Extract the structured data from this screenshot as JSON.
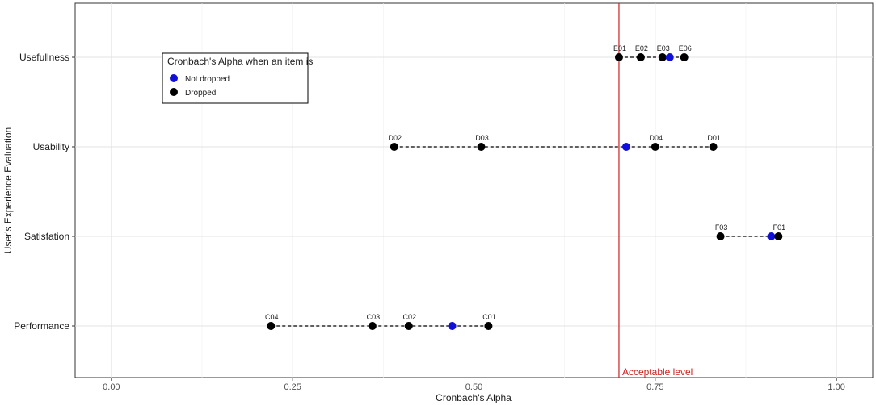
{
  "chart_data": {
    "type": "scatter",
    "xlabel": "Cronbach's Alpha",
    "ylabel": "User's Experience Evaluation",
    "xlim": [
      -0.05,
      1.05
    ],
    "x_ticks": [
      "0.00",
      "0.25",
      "0.50",
      "0.75",
      "1.00"
    ],
    "x_tick_values": [
      0,
      0.25,
      0.5,
      0.75,
      1.0
    ],
    "categories": [
      "Usefullness",
      "Usability",
      "Satisfation",
      "Performance"
    ],
    "grid": true,
    "reference_line": {
      "x": 0.7,
      "label": "Acceptable level",
      "color": "#cc2222"
    },
    "legend": {
      "title": "Cronbach's Alpha when an item is",
      "placement": "top-left",
      "entries": [
        {
          "label": "Not dropped",
          "color": "#1010d8"
        },
        {
          "label": "Dropped",
          "color": "#000000"
        }
      ]
    },
    "series": [
      {
        "category": "Usefullness",
        "points": [
          {
            "label": "E01",
            "x": 0.7,
            "status": "Dropped"
          },
          {
            "label": "E02",
            "x": 0.73,
            "status": "Dropped"
          },
          {
            "label": "E03",
            "x": 0.76,
            "status": "Dropped"
          },
          {
            "label": "",
            "x": 0.77,
            "status": "Not dropped"
          },
          {
            "label": "E06",
            "x": 0.79,
            "status": "Dropped"
          }
        ]
      },
      {
        "category": "Usability",
        "points": [
          {
            "label": "D02",
            "x": 0.39,
            "status": "Dropped"
          },
          {
            "label": "D03",
            "x": 0.51,
            "status": "Dropped"
          },
          {
            "label": "",
            "x": 0.71,
            "status": "Not dropped"
          },
          {
            "label": "D04",
            "x": 0.75,
            "status": "Dropped"
          },
          {
            "label": "D01",
            "x": 0.83,
            "status": "Dropped"
          }
        ]
      },
      {
        "category": "Satisfation",
        "points": [
          {
            "label": "F03",
            "x": 0.84,
            "status": "Dropped"
          },
          {
            "label": "",
            "x": 0.91,
            "status": "Not dropped"
          },
          {
            "label": "F01",
            "x": 0.92,
            "status": "Dropped"
          }
        ]
      },
      {
        "category": "Performance",
        "points": [
          {
            "label": "C04",
            "x": 0.22,
            "status": "Dropped"
          },
          {
            "label": "C03",
            "x": 0.36,
            "status": "Dropped"
          },
          {
            "label": "C02",
            "x": 0.41,
            "status": "Dropped"
          },
          {
            "label": "",
            "x": 0.47,
            "status": "Not dropped"
          },
          {
            "label": "C01",
            "x": 0.52,
            "status": "Dropped"
          }
        ]
      }
    ]
  }
}
